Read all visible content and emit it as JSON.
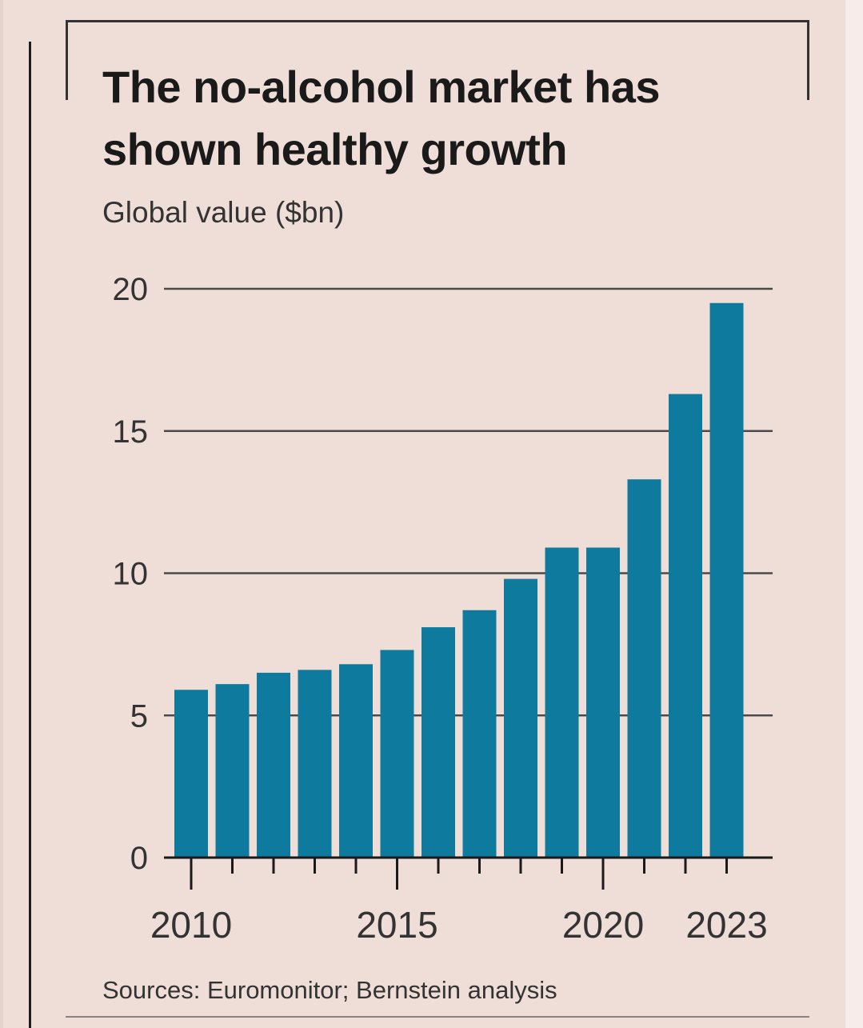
{
  "chart_data": {
    "type": "bar",
    "title": "The no-alcohol market has shown healthy growth",
    "subtitle": "Global value ($bn)",
    "source": "Sources: Euromonitor; Bernstein analysis",
    "xlabel": "",
    "ylabel": "Global value ($bn)",
    "categories": [
      "2010",
      "2011",
      "2012",
      "2013",
      "2014",
      "2015",
      "2016",
      "2017",
      "2018",
      "2019",
      "2020",
      "2021",
      "2022",
      "2023"
    ],
    "values": [
      5.9,
      6.1,
      6.5,
      6.6,
      6.8,
      7.3,
      8.1,
      8.7,
      9.8,
      10.9,
      10.9,
      13.3,
      16.3,
      19.5
    ],
    "series_color": "#0e7a9e",
    "ylim": [
      0,
      20
    ],
    "yticks": [
      "0",
      "5",
      "10",
      "15",
      "20"
    ],
    "xtick_labels": [
      "2010",
      "2015",
      "2020",
      "2023"
    ],
    "grid": true
  }
}
